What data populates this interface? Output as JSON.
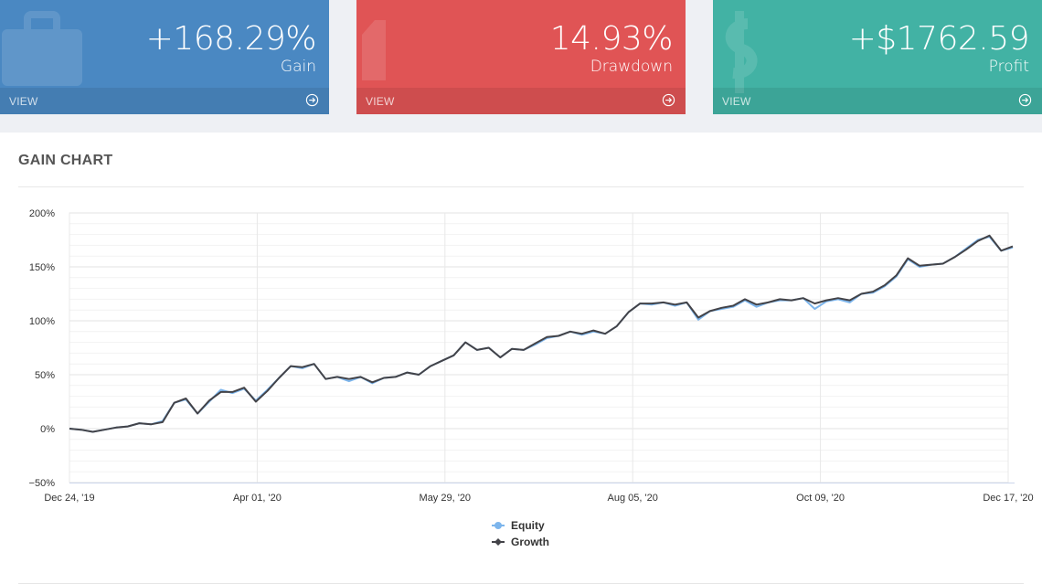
{
  "cards": [
    {
      "value": "+168.29%",
      "label": "Gain",
      "footer": "VIEW",
      "icon": "briefcase-icon"
    },
    {
      "value": "14.93%",
      "label": "Drawdown",
      "footer": "VIEW",
      "icon": "download-icon"
    },
    {
      "value": "+$1762.59",
      "label": "Profit",
      "footer": "VIEW",
      "icon": "dollar-icon"
    }
  ],
  "panel": {
    "title": "GAIN CHART"
  },
  "chart_data": {
    "type": "line",
    "x_tick_labels": [
      "Dec 24, '19",
      "Apr 01, '20",
      "May 29, '20",
      "Aug 05, '20",
      "Oct 09, '20",
      "Dec 17, '20"
    ],
    "y_tick_labels": [
      "200%",
      "150%",
      "100%",
      "50%",
      "0%",
      "−50%"
    ],
    "ylim": [
      -50,
      200
    ],
    "grid": true,
    "legend": "bottom-center",
    "series": [
      {
        "name": "Equity",
        "color": "#7cb5ec",
        "values": [
          0,
          -1,
          -3,
          -1,
          1,
          2,
          5,
          4,
          7,
          24,
          27,
          14,
          25,
          36,
          33,
          37,
          26,
          36,
          47,
          58,
          56,
          60,
          46,
          48,
          44,
          48,
          42,
          47,
          48,
          52,
          50,
          58,
          63,
          68,
          80,
          73,
          75,
          66,
          74,
          73,
          78,
          84,
          86,
          90,
          87,
          90,
          88,
          95,
          108,
          116,
          115,
          117,
          114,
          117,
          101,
          109,
          111,
          113,
          119,
          113,
          117,
          119,
          119,
          121,
          111,
          118,
          120,
          117,
          125,
          126,
          132,
          141,
          157,
          150,
          152,
          153,
          159,
          167,
          175,
          178,
          165,
          168
        ]
      },
      {
        "name": "Growth",
        "color": "#434348",
        "values": [
          0,
          -1,
          -3,
          -1,
          1,
          2,
          5,
          4,
          6,
          24,
          28,
          14,
          26,
          34,
          34,
          38,
          25,
          35,
          47,
          58,
          57,
          60,
          46,
          48,
          46,
          48,
          43,
          47,
          48,
          52,
          50,
          58,
          63,
          68,
          80,
          73,
          75,
          66,
          74,
          73,
          79,
          85,
          86,
          90,
          88,
          91,
          88,
          95,
          108,
          116,
          116,
          117,
          115,
          117,
          103,
          109,
          112,
          114,
          120,
          115,
          117,
          120,
          119,
          121,
          116,
          119,
          121,
          119,
          125,
          127,
          133,
          142,
          158,
          151,
          152,
          153,
          159,
          166,
          174,
          179,
          165,
          169
        ]
      }
    ]
  }
}
